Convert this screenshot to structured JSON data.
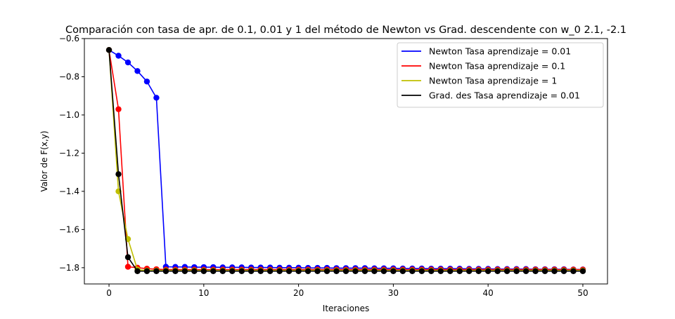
{
  "chart_data": {
    "type": "line",
    "title": "Comparación con tasa de apr. de 0.1, 0.01 y 1 del método de Newton vs Grad. descendente con w_0 2.1, -2.1",
    "xlabel": "Iteraciones",
    "ylabel": "Valor de F(x,y)",
    "xlim": [
      -2.6,
      52.6
    ],
    "ylim": [
      -1.885,
      -0.6
    ],
    "xticks": [
      0,
      10,
      20,
      30,
      40,
      50
    ],
    "xtick_labels": [
      "0",
      "10",
      "20",
      "30",
      "40",
      "50"
    ],
    "yticks": [
      -0.6,
      -0.8,
      -1.0,
      -1.2,
      -1.4,
      -1.6,
      -1.8
    ],
    "ytick_labels": [
      "−0.6",
      "−0.8",
      "−1.0",
      "−1.2",
      "−1.4",
      "−1.6",
      "−1.8"
    ],
    "grid": false,
    "legend_position": "top-right",
    "series": [
      {
        "name": "Newton Tasa aprendizaje = 0.01",
        "color": "#0000ff",
        "x": [
          0,
          1,
          2,
          3,
          4,
          5,
          6,
          7,
          8,
          9,
          10,
          11,
          12,
          13,
          14,
          15,
          16,
          17,
          18,
          19,
          20,
          21,
          22,
          23,
          24,
          25,
          26,
          27,
          28,
          29,
          30,
          31,
          32,
          33,
          34,
          35,
          36,
          37,
          38,
          39,
          40,
          41,
          42,
          43,
          44,
          45,
          46,
          47,
          48,
          49,
          50
        ],
        "values": [
          -0.66,
          -0.69,
          -0.725,
          -0.77,
          -0.825,
          -0.91,
          -1.795,
          -1.796,
          -1.796,
          -1.797,
          -1.797,
          -1.797,
          -1.798,
          -1.798,
          -1.798,
          -1.799,
          -1.799,
          -1.799,
          -1.8,
          -1.8,
          -1.8,
          -1.801,
          -1.801,
          -1.801,
          -1.802,
          -1.802,
          -1.802,
          -1.802,
          -1.803,
          -1.803,
          -1.803,
          -1.804,
          -1.804,
          -1.804,
          -1.805,
          -1.805,
          -1.805,
          -1.805,
          -1.806,
          -1.806,
          -1.806,
          -1.807,
          -1.807,
          -1.807,
          -1.807,
          -1.808,
          -1.808,
          -1.808,
          -1.808,
          -1.809,
          -1.809
        ]
      },
      {
        "name": "Newton Tasa aprendizaje = 0.1",
        "color": "#ff0000",
        "x": [
          0,
          1,
          2,
          3,
          4,
          5,
          6,
          7,
          8,
          9,
          10,
          11,
          12,
          13,
          14,
          15,
          16,
          17,
          18,
          19,
          20,
          21,
          22,
          23,
          24,
          25,
          26,
          27,
          28,
          29,
          30,
          31,
          32,
          33,
          34,
          35,
          36,
          37,
          38,
          39,
          40,
          41,
          42,
          43,
          44,
          45,
          46,
          47,
          48,
          49,
          50
        ],
        "values": [
          -0.66,
          -0.97,
          -1.795,
          -1.8,
          -1.805,
          -1.808,
          -1.81,
          -1.81,
          -1.81,
          -1.81,
          -1.81,
          -1.81,
          -1.81,
          -1.81,
          -1.81,
          -1.81,
          -1.81,
          -1.81,
          -1.81,
          -1.81,
          -1.81,
          -1.81,
          -1.81,
          -1.81,
          -1.81,
          -1.81,
          -1.81,
          -1.81,
          -1.81,
          -1.81,
          -1.81,
          -1.81,
          -1.81,
          -1.81,
          -1.81,
          -1.81,
          -1.81,
          -1.81,
          -1.81,
          -1.81,
          -1.81,
          -1.81,
          -1.81,
          -1.81,
          -1.81,
          -1.81,
          -1.81,
          -1.81,
          -1.81,
          -1.81,
          -1.81
        ]
      },
      {
        "name": "Newton Tasa aprendizaje = 1",
        "color": "#bfbf00",
        "x": [
          0,
          1,
          2,
          3,
          4,
          5,
          6,
          7,
          8,
          9,
          10,
          11,
          12,
          13,
          14,
          15,
          16,
          17,
          18,
          19,
          20,
          21,
          22,
          23,
          24,
          25,
          26,
          27,
          28,
          29,
          30,
          31,
          32,
          33,
          34,
          35,
          36,
          37,
          38,
          39,
          40,
          41,
          42,
          43,
          44,
          45,
          46,
          47,
          48,
          49,
          50
        ],
        "values": [
          -0.66,
          -1.4,
          -1.65,
          -1.81,
          -1.815,
          -1.815,
          -1.815,
          -1.815,
          -1.815,
          -1.815,
          -1.815,
          -1.815,
          -1.815,
          -1.815,
          -1.815,
          -1.815,
          -1.815,
          -1.815,
          -1.815,
          -1.815,
          -1.815,
          -1.815,
          -1.815,
          -1.815,
          -1.815,
          -1.815,
          -1.815,
          -1.815,
          -1.815,
          -1.815,
          -1.815,
          -1.815,
          -1.815,
          -1.815,
          -1.815,
          -1.815,
          -1.815,
          -1.815,
          -1.815,
          -1.815,
          -1.815,
          -1.815,
          -1.815,
          -1.815,
          -1.815,
          -1.815,
          -1.815,
          -1.815,
          -1.815,
          -1.815,
          -1.815
        ]
      },
      {
        "name": "Grad. des Tasa aprendizaje = 0.01",
        "color": "#000000",
        "x": [
          0,
          1,
          2,
          3,
          4,
          5,
          6,
          7,
          8,
          9,
          10,
          11,
          12,
          13,
          14,
          15,
          16,
          17,
          18,
          19,
          20,
          21,
          22,
          23,
          24,
          25,
          26,
          27,
          28,
          29,
          30,
          31,
          32,
          33,
          34,
          35,
          36,
          37,
          38,
          39,
          40,
          41,
          42,
          43,
          44,
          45,
          46,
          47,
          48,
          49,
          50
        ],
        "values": [
          -0.66,
          -1.31,
          -1.745,
          -1.818,
          -1.818,
          -1.818,
          -1.818,
          -1.818,
          -1.818,
          -1.818,
          -1.818,
          -1.818,
          -1.818,
          -1.818,
          -1.818,
          -1.818,
          -1.818,
          -1.818,
          -1.818,
          -1.818,
          -1.818,
          -1.818,
          -1.818,
          -1.818,
          -1.818,
          -1.818,
          -1.818,
          -1.818,
          -1.818,
          -1.818,
          -1.818,
          -1.818,
          -1.818,
          -1.818,
          -1.818,
          -1.818,
          -1.818,
          -1.818,
          -1.818,
          -1.818,
          -1.818,
          -1.818,
          -1.818,
          -1.818,
          -1.818,
          -1.818,
          -1.818,
          -1.818,
          -1.818,
          -1.818,
          -1.818
        ]
      }
    ]
  }
}
